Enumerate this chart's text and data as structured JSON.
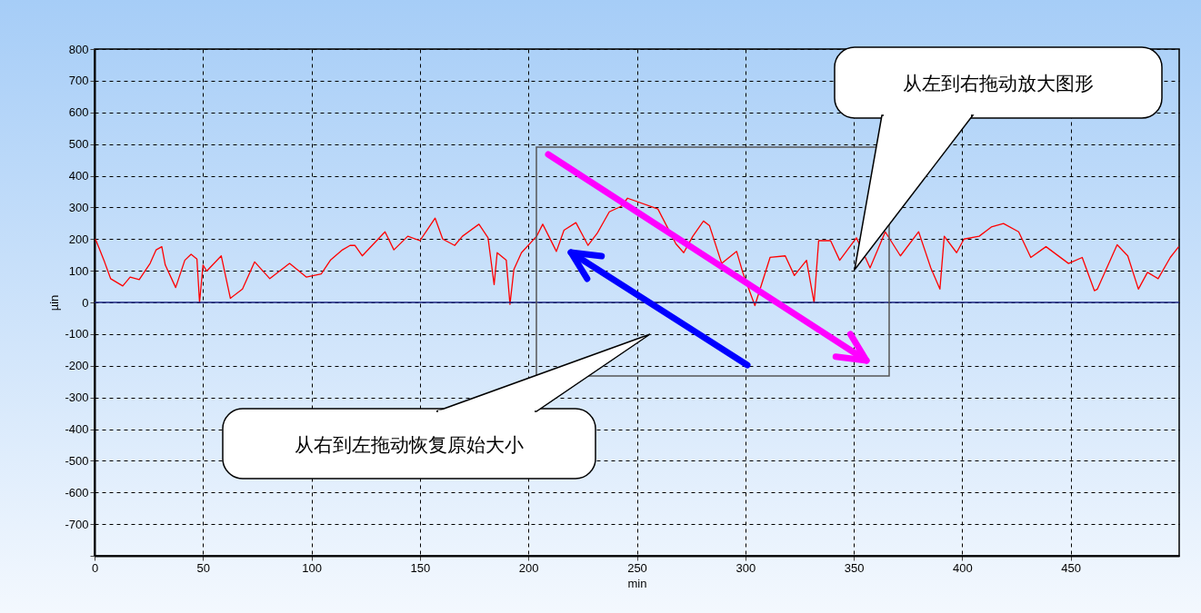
{
  "chart_data": {
    "type": "line",
    "xlabel": "min",
    "ylabel": "µin",
    "xlim": [
      0,
      500
    ],
    "ylim": [
      -800,
      800
    ],
    "xticks": [
      0,
      50,
      100,
      150,
      200,
      250,
      300,
      350,
      400,
      450
    ],
    "yticks": [
      {
        "value": -800,
        "label": null
      },
      -700,
      -600,
      -500,
      -400,
      -300,
      -200,
      -100,
      0,
      100,
      200,
      300,
      400,
      500,
      600,
      700,
      800
    ],
    "grid": true,
    "ref_lines": [
      {
        "axis": "y",
        "value": 0,
        "color": "#1a237e"
      }
    ],
    "annotations": [
      "从左到右拖动放大图形",
      "从右到左拖动恢复原始大小"
    ],
    "series": [
      {
        "color": "#ff0000",
        "x": [
          0.4,
          2.1,
          4.6,
          7.4,
          13,
          16.4,
          20.6,
          25.6,
          28.4,
          31,
          32.6,
          37.4,
          41.6,
          44.5,
          47.2,
          48.4,
          50,
          51.7,
          58.4,
          62.6,
          68.2,
          73.8,
          80.8,
          89.9,
          97.6,
          104.5,
          108.7,
          114.3,
          117.8,
          120,
          123.4,
          133.9,
          138,
          144.4,
          150,
          157,
          160.5,
          166,
          169.6,
          177.2,
          181.4,
          184.2,
          185.6,
          189.8,
          191.5,
          193.3,
          196.8,
          203.8,
          206.6,
          209.4,
          212.9,
          216.4,
          221.9,
          227.5,
          231.7,
          237.3,
          242.9,
          245.7,
          259.7,
          268,
          271.6,
          275.8,
          280.7,
          283.5,
          289.1,
          296,
          298.8,
          304.4,
          311.4,
          318.4,
          322.6,
          328.2,
          331.7,
          333.8,
          339.3,
          343.5,
          351.2,
          357.5,
          364.5,
          371.5,
          379.9,
          385.5,
          389.7,
          391.7,
          397.4,
          400.8,
          407.8,
          413.4,
          419,
          426,
          431.6,
          438.6,
          449,
          455.3,
          460.9,
          462.3,
          471.4,
          476.3,
          481.2,
          485.4,
          490.3,
          495.9,
          499.8
        ],
        "values": [
          200,
          171,
          128,
          75,
          52,
          80,
          72,
          123,
          166,
          176,
          118,
          47,
          133,
          152,
          137,
          0,
          118,
          99,
          147,
          13,
          42,
          128,
          75,
          123,
          80,
          90,
          133,
          166,
          180,
          180,
          147,
          223,
          166,
          209,
          195,
          266,
          200,
          180,
          209,
          247,
          204,
          56,
          157,
          133,
          -6,
          104,
          157,
          209,
          247,
          209,
          161,
          228,
          252,
          180,
          218,
          286,
          304,
          329,
          295,
          185,
          157,
          209,
          257,
          242,
          123,
          161,
          95,
          -10,
          142,
          147,
          85,
          133,
          -1,
          195,
          195,
          133,
          204,
          109,
          223,
          147,
          223,
          109,
          42,
          209,
          157,
          200,
          209,
          238,
          249,
          223,
          142,
          176,
          123,
          142,
          37,
          42,
          182,
          147,
          42,
          95,
          75,
          142,
          176
        ]
      }
    ]
  }
}
